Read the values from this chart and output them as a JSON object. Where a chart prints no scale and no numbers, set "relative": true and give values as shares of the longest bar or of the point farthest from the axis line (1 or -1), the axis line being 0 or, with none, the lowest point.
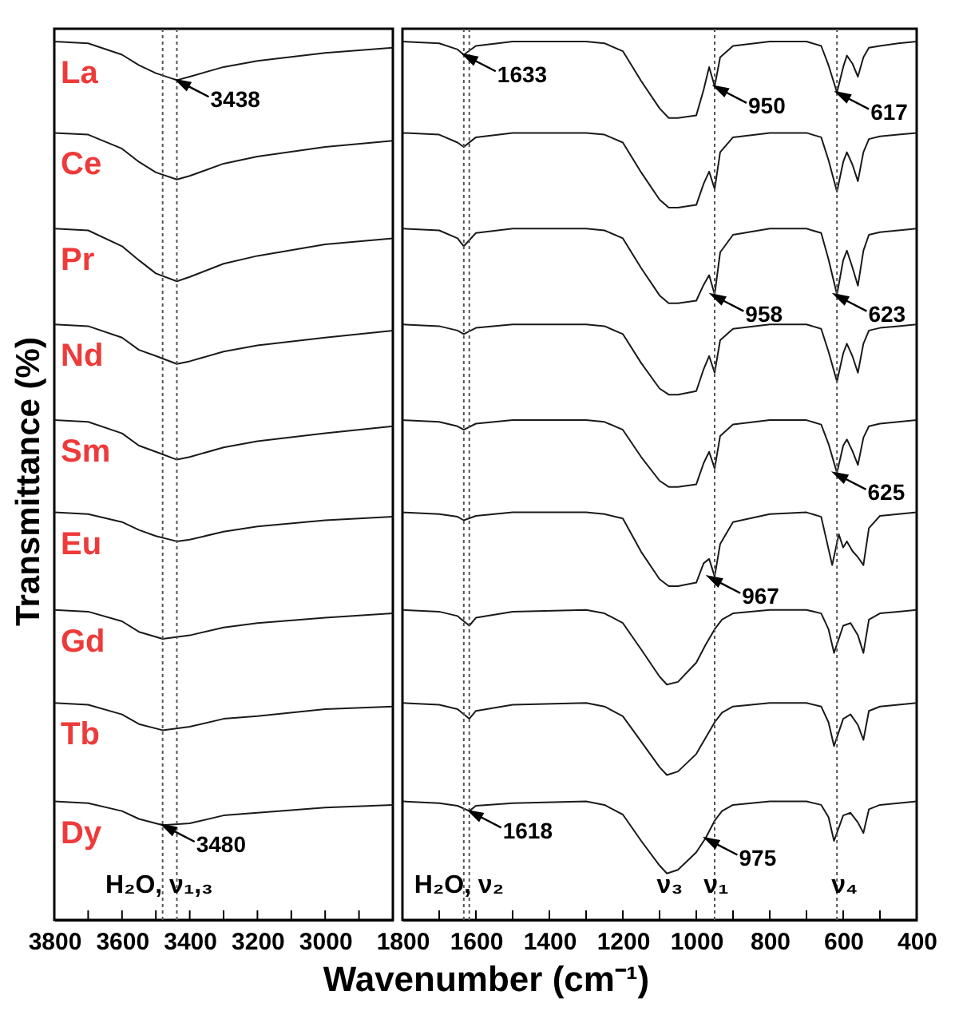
{
  "chart_data": [
    {
      "type": "line",
      "relative": true,
      "ylabel": "Transmittance (%)",
      "xlim": [
        3800,
        2800
      ],
      "xticks": [
        3800,
        {
          "value": 3700,
          "label": null
        },
        3600,
        {
          "value": 3500,
          "label": null
        },
        3400,
        {
          "value": 3300,
          "label": null
        },
        3200,
        {
          "value": 3100,
          "label": null
        },
        3000,
        {
          "value": 2900,
          "label": null
        }
      ],
      "series": [
        {
          "name": "La",
          "color": "#1a1a1a",
          "x": [
            3800,
            3700,
            3600,
            3550,
            3500,
            3438,
            3400,
            3300,
            3200,
            3000,
            2800
          ],
          "values": [
            1.0,
            0.998,
            0.985,
            0.973,
            0.964,
            0.956,
            0.96,
            0.971,
            0.978,
            0.987,
            0.993
          ]
        },
        {
          "name": "Ce",
          "color": "#1a1a1a",
          "x": [
            3800,
            3700,
            3600,
            3550,
            3500,
            3438,
            3400,
            3300,
            3200,
            3000,
            2800
          ],
          "values": [
            0.896,
            0.894,
            0.878,
            0.863,
            0.851,
            0.843,
            0.847,
            0.861,
            0.869,
            0.88,
            0.887
          ]
        },
        {
          "name": "Pr",
          "color": "#1a1a1a",
          "x": [
            3800,
            3700,
            3600,
            3550,
            3500,
            3438,
            3400,
            3300,
            3200,
            3000,
            2800
          ],
          "values": [
            0.787,
            0.785,
            0.767,
            0.751,
            0.736,
            0.727,
            0.732,
            0.747,
            0.756,
            0.769,
            0.776
          ]
        },
        {
          "name": "Nd",
          "color": "#1a1a1a",
          "x": [
            3800,
            3700,
            3600,
            3550,
            3500,
            3438,
            3400,
            3300,
            3200,
            3000,
            2800
          ],
          "values": [
            0.678,
            0.676,
            0.663,
            0.649,
            0.642,
            0.633,
            0.636,
            0.647,
            0.654,
            0.663,
            0.671
          ]
        },
        {
          "name": "Sm",
          "color": "#1a1a1a",
          "x": [
            3800,
            3700,
            3600,
            3550,
            3500,
            3438,
            3400,
            3300,
            3200,
            3000,
            2800
          ],
          "values": [
            0.569,
            0.567,
            0.554,
            0.54,
            0.533,
            0.524,
            0.527,
            0.538,
            0.545,
            0.554,
            0.562
          ]
        },
        {
          "name": "Eu",
          "color": "#1a1a1a",
          "x": [
            3800,
            3700,
            3600,
            3550,
            3500,
            3438,
            3400,
            3300,
            3200,
            3000,
            2800
          ],
          "values": [
            0.464,
            0.462,
            0.453,
            0.444,
            0.437,
            0.431,
            0.433,
            0.442,
            0.448,
            0.455,
            0.459
          ]
        },
        {
          "name": "Gd",
          "color": "#1a1a1a",
          "x": [
            3800,
            3700,
            3600,
            3550,
            3480,
            3400,
            3300,
            3200,
            3000,
            2800
          ],
          "values": [
            0.353,
            0.351,
            0.34,
            0.328,
            0.32,
            0.324,
            0.333,
            0.338,
            0.344,
            0.349
          ]
        },
        {
          "name": "Tb",
          "color": "#1a1a1a",
          "x": [
            3800,
            3700,
            3600,
            3550,
            3480,
            3400,
            3300,
            3200,
            3000,
            2800
          ],
          "values": [
            0.247,
            0.245,
            0.234,
            0.223,
            0.216,
            0.22,
            0.229,
            0.232,
            0.24,
            0.243
          ]
        },
        {
          "name": "Dy",
          "color": "#1a1a1a",
          "x": [
            3800,
            3700,
            3600,
            3550,
            3480,
            3400,
            3300,
            3200,
            3000,
            2800
          ],
          "values": [
            0.135,
            0.133,
            0.124,
            0.115,
            0.108,
            0.11,
            0.119,
            0.122,
            0.128,
            0.131
          ]
        }
      ],
      "ref_lines": [
        {
          "axis": "x",
          "value": 3438,
          "color": "#555555",
          "line_style": "dotted"
        },
        {
          "axis": "x",
          "value": 3480,
          "color": "#555555",
          "line_style": "dotted"
        }
      ],
      "annotations": [
        {
          "text": "3438",
          "x": 3438,
          "y": 0.956
        },
        {
          "text": "3480",
          "x": 3480,
          "y": 0.108
        },
        "H₂O, ν₁,₃"
      ]
    },
    {
      "type": "line",
      "relative": true,
      "xlabel": "Wavenumber (cm⁻¹)",
      "xlim": [
        1800,
        400
      ],
      "xticks": [
        1800,
        {
          "value": 1700,
          "label": null
        },
        1600,
        {
          "value": 1500,
          "label": null
        },
        1400,
        {
          "value": 1300,
          "label": null
        },
        1200,
        {
          "value": 1100,
          "label": null
        },
        1000,
        {
          "value": 900,
          "label": null
        },
        800,
        {
          "value": 700,
          "label": null
        },
        600,
        {
          "value": 500,
          "label": null
        },
        400
      ],
      "series": [
        {
          "color": "#1a1a1a",
          "x": [
            1800,
            1700,
            1650,
            1633,
            1600,
            1500,
            1300,
            1250,
            1200,
            1150,
            1100,
            1075,
            1050,
            1000,
            980,
            965,
            950,
            935,
            900,
            800,
            700,
            660,
            640,
            617,
            600,
            590,
            575,
            560,
            545,
            530,
            500,
            450,
            400
          ],
          "values": [
            1.0,
            0.998,
            0.991,
            0.985,
            0.995,
            1.0,
            1.0,
            0.998,
            0.989,
            0.955,
            0.924,
            0.913,
            0.913,
            0.916,
            0.945,
            0.971,
            0.949,
            0.982,
            0.995,
            1.0,
            1.0,
            0.995,
            0.973,
            0.942,
            0.971,
            0.984,
            0.975,
            0.96,
            0.982,
            0.993,
            0.995,
            0.998,
            1.0
          ]
        },
        {
          "color": "#1a1a1a",
          "x": [
            1800,
            1700,
            1650,
            1633,
            1600,
            1500,
            1300,
            1250,
            1200,
            1150,
            1100,
            1075,
            1050,
            1000,
            980,
            965,
            950,
            935,
            900,
            800,
            700,
            660,
            640,
            617,
            600,
            590,
            575,
            560,
            545,
            530,
            500,
            450,
            400
          ],
          "values": [
            0.896,
            0.894,
            0.885,
            0.88,
            0.891,
            0.896,
            0.896,
            0.894,
            0.885,
            0.851,
            0.82,
            0.811,
            0.811,
            0.814,
            0.838,
            0.852,
            0.832,
            0.874,
            0.891,
            0.896,
            0.896,
            0.891,
            0.865,
            0.829,
            0.863,
            0.874,
            0.86,
            0.841,
            0.874,
            0.889,
            0.892,
            0.894,
            0.896
          ]
        },
        {
          "color": "#1a1a1a",
          "x": [
            1800,
            1700,
            1650,
            1633,
            1600,
            1500,
            1300,
            1250,
            1200,
            1150,
            1100,
            1075,
            1050,
            1000,
            980,
            965,
            950,
            935,
            900,
            800,
            700,
            660,
            640,
            617,
            600,
            590,
            575,
            560,
            545,
            530,
            500,
            450,
            400
          ],
          "values": [
            0.787,
            0.785,
            0.776,
            0.767,
            0.782,
            0.787,
            0.787,
            0.785,
            0.776,
            0.742,
            0.711,
            0.702,
            0.702,
            0.705,
            0.723,
            0.734,
            0.712,
            0.76,
            0.78,
            0.787,
            0.787,
            0.782,
            0.752,
            0.712,
            0.751,
            0.762,
            0.743,
            0.722,
            0.762,
            0.78,
            0.783,
            0.785,
            0.787
          ]
        },
        {
          "color": "#1a1a1a",
          "x": [
            1800,
            1700,
            1650,
            1633,
            1600,
            1500,
            1300,
            1250,
            1200,
            1150,
            1100,
            1075,
            1050,
            1000,
            980,
            965,
            950,
            935,
            900,
            800,
            700,
            660,
            640,
            617,
            600,
            590,
            575,
            560,
            545,
            530,
            500,
            450,
            400
          ],
          "values": [
            0.678,
            0.676,
            0.671,
            0.667,
            0.674,
            0.678,
            0.678,
            0.676,
            0.667,
            0.634,
            0.605,
            0.598,
            0.598,
            0.602,
            0.627,
            0.642,
            0.623,
            0.66,
            0.673,
            0.678,
            0.678,
            0.673,
            0.647,
            0.613,
            0.645,
            0.656,
            0.642,
            0.623,
            0.656,
            0.671,
            0.674,
            0.676,
            0.678
          ]
        },
        {
          "color": "#1a1a1a",
          "x": [
            1800,
            1700,
            1650,
            1633,
            1600,
            1500,
            1300,
            1250,
            1200,
            1150,
            1100,
            1075,
            1050,
            1000,
            980,
            965,
            950,
            935,
            900,
            800,
            700,
            660,
            640,
            617,
            600,
            590,
            575,
            560,
            545,
            530,
            500,
            450,
            400
          ],
          "values": [
            0.569,
            0.567,
            0.562,
            0.558,
            0.565,
            0.569,
            0.569,
            0.567,
            0.558,
            0.527,
            0.5,
            0.493,
            0.493,
            0.496,
            0.52,
            0.533,
            0.514,
            0.551,
            0.564,
            0.569,
            0.569,
            0.564,
            0.542,
            0.509,
            0.54,
            0.547,
            0.534,
            0.518,
            0.549,
            0.562,
            0.565,
            0.567,
            0.569
          ]
        },
        {
          "color": "#1a1a1a",
          "x": [
            1800,
            1700,
            1650,
            1633,
            1600,
            1500,
            1300,
            1250,
            1200,
            1150,
            1100,
            1075,
            1050,
            1000,
            980,
            965,
            950,
            935,
            900,
            800,
            700,
            660,
            630,
            612,
            600,
            590,
            575,
            560,
            545,
            530,
            500,
            450,
            400
          ],
          "values": [
            0.464,
            0.462,
            0.459,
            0.455,
            0.46,
            0.464,
            0.464,
            0.462,
            0.457,
            0.419,
            0.388,
            0.38,
            0.38,
            0.384,
            0.406,
            0.411,
            0.391,
            0.428,
            0.453,
            0.462,
            0.464,
            0.459,
            0.404,
            0.439,
            0.424,
            0.431,
            0.42,
            0.413,
            0.404,
            0.446,
            0.46,
            0.462,
            0.464
          ]
        },
        {
          "color": "#1a1a1a",
          "x": [
            1800,
            1700,
            1650,
            1618,
            1600,
            1500,
            1300,
            1250,
            1200,
            1150,
            1100,
            1080,
            1050,
            1000,
            975,
            950,
            930,
            900,
            800,
            700,
            660,
            640,
            625,
            600,
            580,
            560,
            545,
            530,
            500,
            450,
            400
          ],
          "values": [
            0.353,
            0.351,
            0.346,
            0.335,
            0.344,
            0.351,
            0.353,
            0.349,
            0.338,
            0.308,
            0.277,
            0.268,
            0.271,
            0.293,
            0.313,
            0.331,
            0.342,
            0.349,
            0.353,
            0.353,
            0.349,
            0.331,
            0.304,
            0.335,
            0.338,
            0.324,
            0.304,
            0.342,
            0.349,
            0.351,
            0.353
          ]
        },
        {
          "color": "#1a1a1a",
          "x": [
            1800,
            1700,
            1650,
            1618,
            1600,
            1500,
            1300,
            1250,
            1200,
            1150,
            1100,
            1080,
            1050,
            1000,
            975,
            950,
            930,
            900,
            800,
            700,
            660,
            640,
            625,
            600,
            580,
            560,
            545,
            530,
            500,
            450,
            400
          ],
          "values": [
            0.247,
            0.245,
            0.24,
            0.229,
            0.238,
            0.245,
            0.247,
            0.243,
            0.232,
            0.203,
            0.174,
            0.165,
            0.169,
            0.189,
            0.207,
            0.225,
            0.236,
            0.243,
            0.247,
            0.247,
            0.243,
            0.225,
            0.198,
            0.229,
            0.234,
            0.222,
            0.205,
            0.238,
            0.243,
            0.245,
            0.247
          ]
        },
        {
          "color": "#1a1a1a",
          "x": [
            1800,
            1700,
            1650,
            1618,
            1600,
            1500,
            1300,
            1250,
            1200,
            1150,
            1100,
            1080,
            1050,
            1000,
            975,
            950,
            930,
            900,
            800,
            700,
            660,
            640,
            625,
            600,
            580,
            560,
            545,
            530,
            500,
            450,
            400
          ],
          "values": [
            0.135,
            0.133,
            0.13,
            0.124,
            0.13,
            0.133,
            0.135,
            0.131,
            0.12,
            0.09,
            0.062,
            0.053,
            0.057,
            0.077,
            0.093,
            0.113,
            0.124,
            0.131,
            0.135,
            0.135,
            0.131,
            0.117,
            0.09,
            0.119,
            0.122,
            0.111,
            0.099,
            0.126,
            0.131,
            0.133,
            0.135
          ]
        }
      ],
      "ref_lines": [
        {
          "axis": "x",
          "value": 1633,
          "color": "#555555",
          "line_style": "dotted"
        },
        {
          "axis": "x",
          "value": 1618,
          "color": "#555555",
          "line_style": "dotted"
        },
        {
          "axis": "x",
          "value": 950,
          "color": "#555555",
          "line_style": "dotted"
        },
        {
          "axis": "x",
          "value": 617,
          "color": "#555555",
          "line_style": "dotted"
        }
      ],
      "annotations": [
        {
          "text": "1633",
          "x": 1633,
          "y": 0.985
        },
        {
          "text": "950",
          "x": 950,
          "y": 0.949
        },
        {
          "text": "617",
          "x": 617,
          "y": 0.942
        },
        {
          "text": "958",
          "x": 958,
          "y": 0.712
        },
        {
          "text": "623",
          "x": 623,
          "y": 0.712
        },
        {
          "text": "625",
          "x": 625,
          "y": 0.509
        },
        {
          "text": "967",
          "x": 967,
          "y": 0.391
        },
        {
          "text": "1618",
          "x": 1618,
          "y": 0.124
        },
        {
          "text": "975",
          "x": 975,
          "y": 0.093
        },
        "H₂O, ν₂",
        "ν₃",
        "ν₁",
        "ν₄"
      ]
    }
  ]
}
